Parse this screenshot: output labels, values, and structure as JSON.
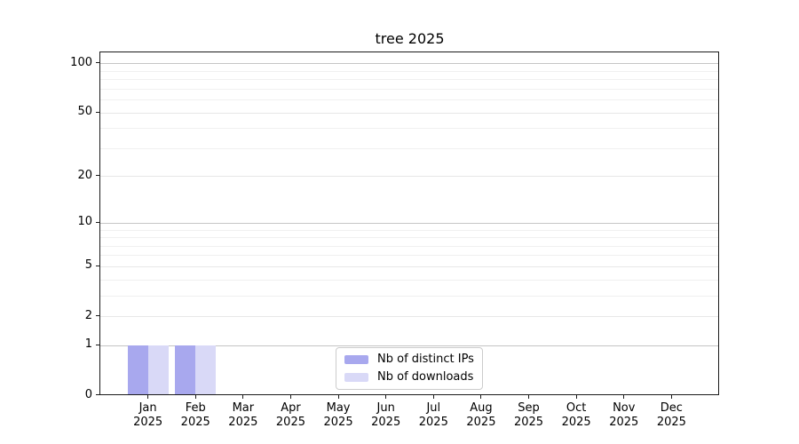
{
  "chart_data": {
    "type": "bar",
    "title": "tree 2025",
    "x_categories": [
      "Jan",
      "Feb",
      "Mar",
      "Apr",
      "May",
      "Jun",
      "Jul",
      "Aug",
      "Sep",
      "Oct",
      "Nov",
      "Dec"
    ],
    "x_sublabel": "2025",
    "series": [
      {
        "name": "Nb of distinct IPs",
        "color": "#a8a8ee",
        "values": [
          1,
          1,
          0,
          0,
          0,
          0,
          0,
          0,
          0,
          0,
          0,
          0
        ]
      },
      {
        "name": "Nb of downloads",
        "color": "#d9d9f7",
        "values": [
          1,
          1,
          0,
          0,
          0,
          0,
          0,
          0,
          0,
          0,
          0,
          0
        ]
      }
    ],
    "y_axis": {
      "scale": "log10(1+x)",
      "ticks": [
        0,
        1,
        2,
        5,
        10,
        20,
        50,
        100
      ],
      "minor_ticks": [
        3,
        4,
        6,
        7,
        8,
        9,
        30,
        40,
        60,
        70,
        80,
        90
      ],
      "emphasized_gridlines": [
        1,
        10,
        100
      ],
      "range": [
        0,
        116
      ]
    },
    "legend": {
      "position": "lower center"
    },
    "colors": {
      "background": "#ffffff",
      "spine": "#1a1a1a",
      "text": "#000000",
      "grid_major_emphasis": "#c5c5c5",
      "grid_major": "#e7e7e7",
      "grid_minor": "#f0f0f0",
      "legend_border": "#cccccc"
    }
  }
}
